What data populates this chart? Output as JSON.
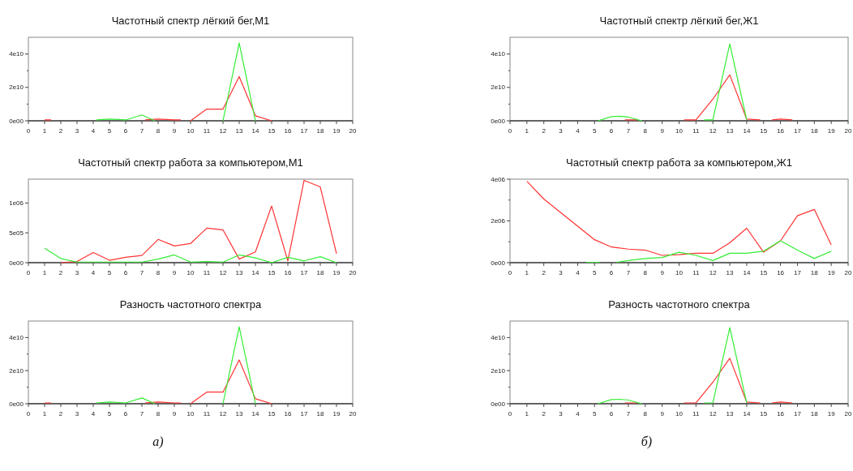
{
  "chart_data": [
    {
      "type": "line",
      "title": "Частотный спектр лёгкий бег,М1",
      "xlim": [
        0,
        20
      ],
      "xticks": [
        0,
        1,
        2,
        3,
        4,
        5,
        6,
        7,
        8,
        9,
        10,
        11,
        12,
        13,
        14,
        15,
        16,
        17,
        18,
        19,
        20
      ],
      "ylim": [
        0,
        50000000000.0
      ],
      "yticks": [
        {
          "value": 0,
          "label": "0e00"
        },
        {
          "value": 10000000000.0,
          "label": null
        },
        {
          "value": 20000000000.0,
          "label": "2e10"
        },
        {
          "value": 30000000000.0,
          "label": null
        },
        {
          "value": 40000000000.0,
          "label": "4e10"
        }
      ],
      "grid": false,
      "series": [
        {
          "color": "#ff3333",
          "x": [
            1,
            1.4,
            2,
            7.2,
            8,
            9,
            9.4,
            9.7,
            10,
            11,
            12,
            13,
            14,
            15
          ],
          "values": [
            500000000.0,
            500000000.0,
            null,
            500000000.0,
            1000000000.0,
            500000000.0,
            500000000.0,
            null,
            0,
            7000000000.0,
            7000000000.0,
            26500000000.0,
            3000000000.0,
            0
          ]
        },
        {
          "color": "#33ee33",
          "x": [
            4.2,
            5,
            6,
            7,
            7.8,
            10,
            12,
            13,
            14
          ],
          "values": [
            500000000.0,
            1000000000.0,
            500000000.0,
            3500000000.0,
            0,
            null,
            0,
            46500000000.0,
            0
          ]
        }
      ]
    },
    {
      "type": "line",
      "title": "Частотный спектр работа за компьютером,М1",
      "xlim": [
        0,
        20
      ],
      "xticks": [
        0,
        1,
        2,
        3,
        4,
        5,
        6,
        7,
        8,
        9,
        10,
        11,
        12,
        13,
        14,
        15,
        16,
        17,
        18,
        19,
        20
      ],
      "ylim": [
        0,
        1400000.0
      ],
      "yticks": [
        {
          "value": 0,
          "label": "0e00"
        },
        {
          "value": 500000.0,
          "label": "5e05"
        },
        {
          "value": 1000000.0,
          "label": "1e06"
        }
      ],
      "grid": false,
      "series": [
        {
          "color": "#ff3333",
          "x": [
            2,
            3,
            4,
            5,
            6,
            7,
            8,
            9,
            10,
            11,
            12,
            13,
            14,
            15,
            16,
            17,
            18,
            19
          ],
          "values": [
            0,
            20000.0,
            170000.0,
            40000.0,
            90000.0,
            120000.0,
            390000.0,
            280000.0,
            320000.0,
            580000.0,
            550000.0,
            60000.0,
            180000.0,
            950000.0,
            30000.0,
            1380000.0,
            1270000.0,
            150000.0
          ]
        },
        {
          "color": "#33ee33",
          "x": [
            1,
            2,
            3,
            4,
            5,
            6,
            7,
            8,
            9,
            10,
            11,
            12,
            13,
            14,
            15,
            16,
            17,
            18,
            19
          ],
          "values": [
            240000.0,
            70000.0,
            10000.0,
            10000.0,
            10000.0,
            10000.0,
            10000.0,
            60000.0,
            130000.0,
            10000.0,
            20000.0,
            10000.0,
            130000.0,
            80000.0,
            0,
            90000.0,
            30000.0,
            100000.0,
            0
          ]
        }
      ]
    },
    {
      "type": "line",
      "title": "Разность частотного спектра",
      "xlim": [
        0,
        20
      ],
      "xticks": [
        0,
        1,
        2,
        3,
        4,
        5,
        6,
        7,
        8,
        9,
        10,
        11,
        12,
        13,
        14,
        15,
        16,
        17,
        18,
        19,
        20
      ],
      "ylim": [
        0,
        50000000000.0
      ],
      "yticks": [
        {
          "value": 0,
          "label": "0e00"
        },
        {
          "value": 10000000000.0,
          "label": null
        },
        {
          "value": 20000000000.0,
          "label": "2e10"
        },
        {
          "value": 30000000000.0,
          "label": null
        },
        {
          "value": 40000000000.0,
          "label": "4e10"
        }
      ],
      "grid": false,
      "annotations": [
        "а)"
      ],
      "series": [
        {
          "color": "#ff3333",
          "x": [
            1,
            1.4,
            2,
            7.2,
            8,
            9,
            9.4,
            9.7,
            10,
            11,
            12,
            13,
            14,
            15
          ],
          "values": [
            500000000.0,
            500000000.0,
            null,
            500000000.0,
            1000000000.0,
            500000000.0,
            500000000.0,
            null,
            0,
            7000000000.0,
            7000000000.0,
            26500000000.0,
            3000000000.0,
            0
          ]
        },
        {
          "color": "#33ee33",
          "x": [
            4.2,
            5,
            6,
            7,
            7.8,
            10,
            12,
            13,
            14
          ],
          "values": [
            500000000.0,
            1000000000.0,
            500000000.0,
            3500000000.0,
            0,
            null,
            0,
            46500000000.0,
            0
          ]
        }
      ]
    },
    {
      "type": "line",
      "title": "Частотный спектр лёгкий бег,Ж1",
      "xlim": [
        0,
        20
      ],
      "xticks": [
        0,
        1,
        2,
        3,
        4,
        5,
        6,
        7,
        8,
        9,
        10,
        11,
        12,
        13,
        14,
        15,
        16,
        17,
        18,
        19,
        20
      ],
      "ylim": [
        0,
        50000000000.0
      ],
      "yticks": [
        {
          "value": 0,
          "label": "0e00"
        },
        {
          "value": 10000000000.0,
          "label": null
        },
        {
          "value": 20000000000.0,
          "label": "2e10"
        },
        {
          "value": 30000000000.0,
          "label": null
        },
        {
          "value": 40000000000.0,
          "label": "4e10"
        }
      ],
      "grid": false,
      "series": [
        {
          "color": "#ff3333",
          "x": [
            6.8,
            7.5,
            9,
            10.3,
            11,
            12,
            13,
            14,
            14.8,
            15.2,
            15.5,
            16,
            16.7
          ],
          "values": [
            500000000.0,
            500000000.0,
            null,
            500000000.0,
            500000000.0,
            13000000000.0,
            27500000000.0,
            1000000000.0,
            500000000.0,
            null,
            500000000.0,
            1000000000.0,
            500000000.0
          ]
        },
        {
          "color": "#33ee33",
          "x": [
            5.2,
            6,
            6.5,
            7,
            7.8,
            9,
            11.5,
            12,
            13,
            14
          ],
          "values": [
            0,
            2500000000.0,
            2700000000.0,
            2200000000.0,
            0,
            null,
            500000000.0,
            500000000.0,
            46000000000.0,
            500000000.0
          ]
        }
      ]
    },
    {
      "type": "line",
      "title": "Частотный спектр работа за компьютером,Ж1",
      "xlim": [
        0,
        20
      ],
      "xticks": [
        0,
        1,
        2,
        3,
        4,
        5,
        6,
        7,
        8,
        9,
        10,
        11,
        12,
        13,
        14,
        15,
        16,
        17,
        18,
        19,
        20
      ],
      "ylim": [
        0,
        4000000.0
      ],
      "yticks": [
        {
          "value": 0,
          "label": "0e00"
        },
        {
          "value": 1000000.0,
          "label": null
        },
        {
          "value": 2000000.0,
          "label": "2e06"
        },
        {
          "value": 3000000.0,
          "label": null
        },
        {
          "value": 4000000.0,
          "label": "4e06"
        }
      ],
      "grid": false,
      "series": [
        {
          "color": "#ff3333",
          "x": [
            1,
            2,
            3,
            4,
            5,
            6,
            7,
            8,
            9,
            10,
            11,
            12,
            13,
            14,
            15,
            16,
            17,
            18,
            19
          ],
          "values": [
            3900000.0,
            3050000.0,
            2400000.0,
            1750000.0,
            1100000.0,
            750000.0,
            650000.0,
            600000.0,
            350000.0,
            380000.0,
            450000.0,
            450000.0,
            950000.0,
            1650000.0,
            500000.0,
            1050000.0,
            2250000.0,
            2550000.0,
            850000.0
          ]
        },
        {
          "color": "#33ee33",
          "x": [
            4.5,
            5.3,
            6,
            6.3,
            7,
            8,
            9,
            10,
            11,
            12,
            13,
            14,
            15,
            16,
            17,
            18,
            19
          ],
          "values": [
            20000.0,
            20000.0,
            null,
            20000.0,
            100000.0,
            200000.0,
            250000.0,
            500000.0,
            350000.0,
            100000.0,
            450000.0,
            450000.0,
            550000.0,
            1050000.0,
            600000.0,
            200000.0,
            550000.0
          ]
        }
      ]
    },
    {
      "type": "line",
      "title": "Разность частотного спектра",
      "xlim": [
        0,
        20
      ],
      "xticks": [
        0,
        1,
        2,
        3,
        4,
        5,
        6,
        7,
        8,
        9,
        10,
        11,
        12,
        13,
        14,
        15,
        16,
        17,
        18,
        19,
        20
      ],
      "ylim": [
        0,
        50000000000.0
      ],
      "yticks": [
        {
          "value": 0,
          "label": "0e00"
        },
        {
          "value": 10000000000.0,
          "label": null
        },
        {
          "value": 20000000000.0,
          "label": "2e10"
        },
        {
          "value": 30000000000.0,
          "label": null
        },
        {
          "value": 40000000000.0,
          "label": "4e10"
        }
      ],
      "grid": false,
      "annotations": [
        "б)"
      ],
      "series": [
        {
          "color": "#ff3333",
          "x": [
            6.8,
            7.5,
            9,
            10.3,
            11,
            12,
            13,
            14,
            14.8,
            15.2,
            15.5,
            16,
            16.7
          ],
          "values": [
            500000000.0,
            500000000.0,
            null,
            500000000.0,
            500000000.0,
            13000000000.0,
            27500000000.0,
            1000000000.0,
            500000000.0,
            null,
            500000000.0,
            1000000000.0,
            500000000.0
          ]
        },
        {
          "color": "#33ee33",
          "x": [
            5.2,
            6,
            6.5,
            7,
            7.8,
            9,
            11.5,
            12,
            13,
            14
          ],
          "values": [
            0,
            2500000000.0,
            2700000000.0,
            2200000000.0,
            0,
            null,
            500000000.0,
            500000000.0,
            46000000000.0,
            500000000.0
          ]
        }
      ]
    }
  ]
}
